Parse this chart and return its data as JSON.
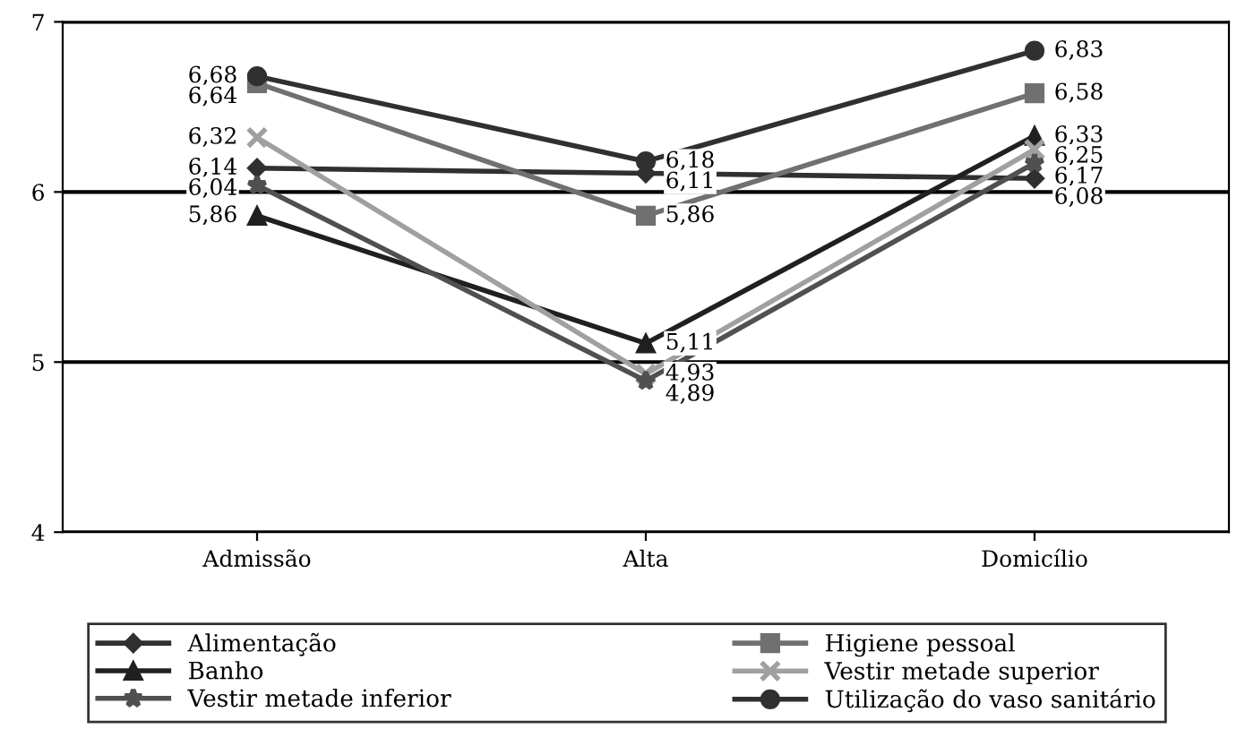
{
  "chart_data": {
    "type": "line",
    "categories": [
      "Admissão",
      "Alta",
      "Domicílio"
    ],
    "ylim": [
      4,
      7
    ],
    "yticks": [
      4,
      5,
      6,
      7
    ],
    "grid": "y",
    "legend": "bottom",
    "series": [
      {
        "name": "Alimentação",
        "color": "#303030",
        "marker": "diamond",
        "values": [
          6.14,
          6.11,
          6.08
        ],
        "value_labels": [
          "6,14",
          "6,11",
          "6,08"
        ]
      },
      {
        "name": "Higiene pessoal",
        "color": "#707070",
        "marker": "square",
        "values": [
          6.64,
          5.86,
          6.58
        ],
        "value_labels": [
          "6,64",
          "5,86",
          "6,58"
        ]
      },
      {
        "name": "Banho",
        "color": "#202020",
        "marker": "triangle",
        "values": [
          5.86,
          5.11,
          6.33
        ],
        "value_labels": [
          "5,86",
          "5,11",
          "6,33"
        ]
      },
      {
        "name": "Vestir metade superior",
        "color": "#a0a0a0",
        "marker": "cross",
        "values": [
          6.32,
          4.93,
          6.25
        ],
        "value_labels": [
          "6,32",
          "4,93",
          "6,25"
        ]
      },
      {
        "name": "Vestir metade inferior",
        "color": "#505050",
        "marker": "star",
        "values": [
          6.04,
          4.89,
          6.17
        ],
        "value_labels": [
          "6,04",
          "4,89",
          "6,17"
        ]
      },
      {
        "name": "Utilização do vaso sanitário",
        "color": "#303030",
        "marker": "circle",
        "values": [
          6.68,
          6.18,
          6.83
        ],
        "value_labels": [
          "6,68",
          "6,18",
          "6,83"
        ]
      }
    ]
  }
}
